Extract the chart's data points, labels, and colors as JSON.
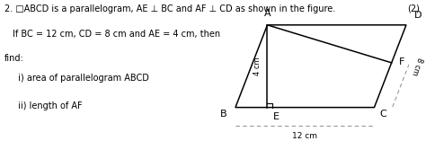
{
  "line1": "2. □ABCD is a parallelogram, AE ⊥ BC and AF ⊥ CD as shown in the figure.",
  "line2": "If BC = 12 cm, CD = 8 cm and AE = 4 cm, then",
  "line3": "find:",
  "line4": "  i) area of parallelogram ABCD",
  "line5": "  ii) length of AF",
  "marks": "(2)",
  "label_A": "A",
  "label_B": "B",
  "label_C": "C",
  "label_D": "D",
  "label_E": "E",
  "label_F": "F",
  "dim_AE": "4 cm",
  "dim_CD": "8 cm",
  "dim_BC": "12 cm",
  "fig_width": 4.74,
  "fig_height": 1.57,
  "text_color": "#000000",
  "line_color": "#000000",
  "dashed_color": "#999999",
  "bg_color": "#ffffff"
}
